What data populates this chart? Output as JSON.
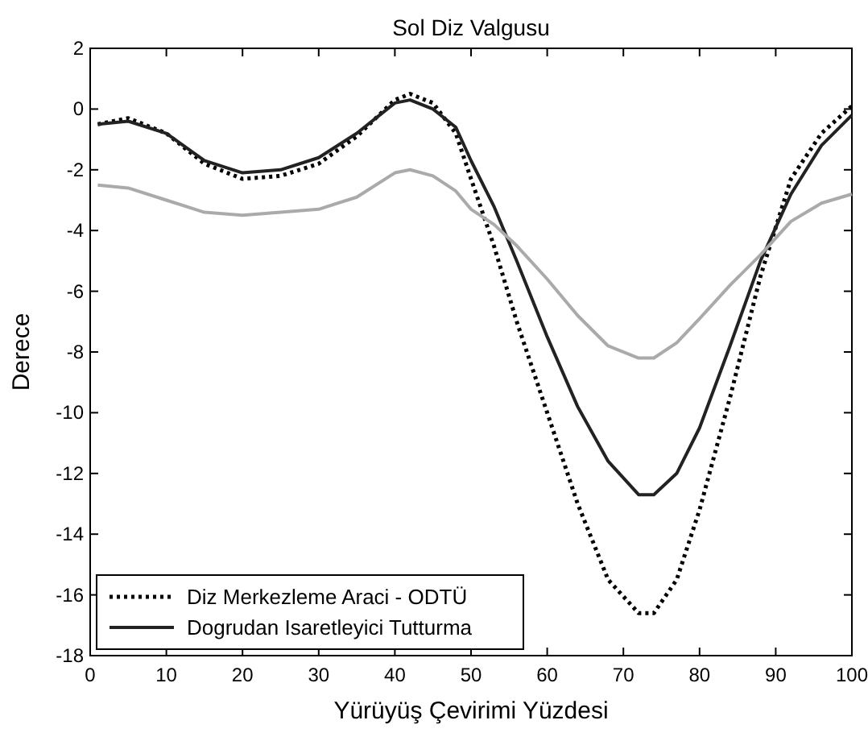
{
  "chart_data": {
    "type": "line",
    "title": "Sol Diz Valgusu",
    "xlabel": "Yürüyüş Çevirimi Yüzdesi",
    "ylabel": "Derece",
    "x": [
      1,
      5,
      10,
      15,
      20,
      25,
      30,
      35,
      40,
      42,
      45,
      48,
      50,
      53,
      56,
      60,
      64,
      68,
      72,
      74,
      77,
      80,
      84,
      88,
      92,
      96,
      100
    ],
    "xlim": [
      0,
      100
    ],
    "xticks": [
      0,
      10,
      20,
      30,
      40,
      50,
      60,
      70,
      80,
      90,
      100
    ],
    "ylim": [
      -18,
      2
    ],
    "yticks": [
      -18,
      -16,
      -14,
      -12,
      -10,
      -8,
      -6,
      -4,
      -2,
      0,
      2
    ],
    "grid": false,
    "legend": "bottom left",
    "marker": "none",
    "series": [
      {
        "name": "Diz Merkezleme Araci - ODTÜ",
        "color": "#000000",
        "line_style": "dotted",
        "values": [
          -0.5,
          -0.3,
          -0.8,
          -1.8,
          -2.3,
          -2.2,
          -1.8,
          -0.9,
          0.3,
          0.5,
          0.2,
          -0.8,
          -2.3,
          -4.5,
          -7,
          -10,
          -13,
          -15.5,
          -16.6,
          -16.6,
          -15.5,
          -13.2,
          -9.5,
          -5.5,
          -2.3,
          -0.8,
          0.1
        ]
      },
      {
        "name": "Dogrudan Isaretleyici Tutturma",
        "color": "#222222",
        "line_style": "solid",
        "values": [
          -0.5,
          -0.4,
          -0.8,
          -1.7,
          -2.1,
          -2.0,
          -1.6,
          -0.8,
          0.2,
          0.3,
          0.0,
          -0.6,
          -1.7,
          -3.2,
          -5,
          -7.5,
          -9.8,
          -11.6,
          -12.7,
          -12.7,
          -12,
          -10.5,
          -7.8,
          -5,
          -2.8,
          -1.2,
          -0.2
        ]
      },
      {
        "color": "#aaaaaa",
        "line_style": "solid",
        "values": [
          -2.5,
          -2.6,
          -3.0,
          -3.4,
          -3.5,
          -3.4,
          -3.3,
          -2.9,
          -2.1,
          -2.0,
          -2.2,
          -2.7,
          -3.3,
          -3.8,
          -4.5,
          -5.6,
          -6.8,
          -7.8,
          -8.2,
          -8.2,
          -7.7,
          -6.9,
          -5.8,
          -4.8,
          -3.7,
          -3.1,
          -2.8
        ]
      }
    ]
  }
}
